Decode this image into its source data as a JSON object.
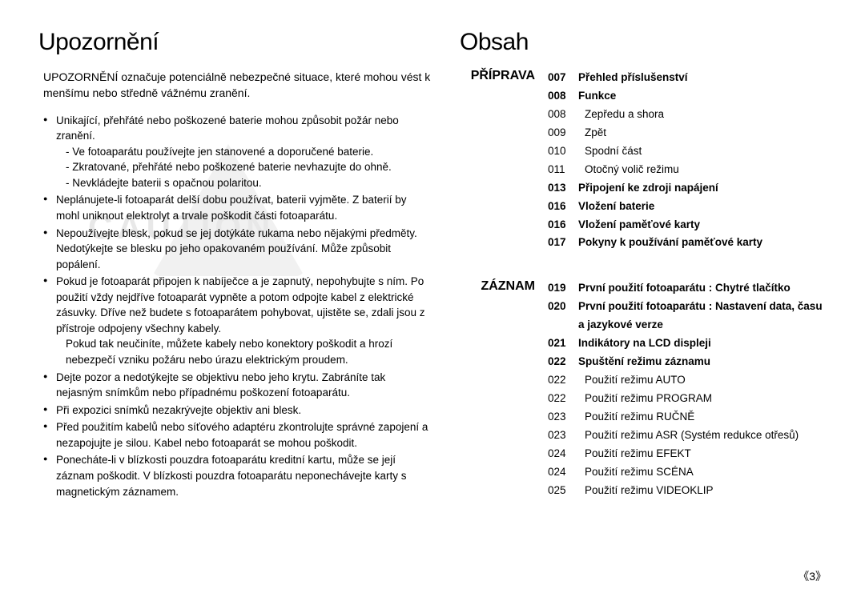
{
  "left": {
    "heading": "Upozornění",
    "intro": "UPOZORNĚNÍ označuje potenciálně nebezpečné situace, které mohou vést k menšímu nebo středně vážnému zranění.",
    "watermark": "CAUTION",
    "bullets": [
      {
        "text": "Unikající, přehřáté nebo poškozené baterie mohou způsobit požár nebo zranění.",
        "subs": [
          "- Ve fotoaparátu používejte jen stanovené a doporučené baterie.",
          "- Zkratované, přehřáté nebo poškozené baterie nevhazujte do ohně.",
          "- Nevkládejte baterii s opačnou polaritou."
        ]
      },
      {
        "text": "Neplánujete-li fotoaparát delší dobu používat, baterii vyjměte. Z baterií by mohl uniknout elektrolyt a trvale poškodit části fotoaparátu.",
        "subs": []
      },
      {
        "text": "Nepoužívejte blesk, pokud se jej dotýkáte rukama nebo nějakými předměty. Nedotýkejte se blesku po jeho opakovaném používání. Může způsobit popálení.",
        "subs": []
      },
      {
        "text": "Pokud je fotoaparát připojen k nabíječce a je zapnutý, nepohybujte s ním. Po použití vždy nejdříve fotoaparát vypněte a potom odpojte kabel z elektrické zásuvky. Dříve než budete s  fotoaparátem pohybovat, ujistěte se, zdali jsou z přístroje odpojeny všechny kabely.",
        "subs": [
          "Pokud tak neučiníte, můžete kabely nebo konektory poškodit a hrozí nebezpečí vzniku požáru nebo úrazu elektrickým proudem."
        ]
      },
      {
        "text": "Dejte pozor a nedotýkejte se objektivu nebo jeho krytu. Zabráníte tak nejasným snímkům nebo případnému poškození fotoaparátu.",
        "subs": []
      },
      {
        "text": "Při expozici snímků nezakrývejte objektiv ani blesk.",
        "subs": []
      },
      {
        "text": "Před použitím kabelů nebo síťového adaptéru zkontrolujte správné zapojení a nezapojujte je silou. Kabel nebo fotoaparát se mohou poškodit.",
        "subs": []
      },
      {
        "text": "Ponecháte-li v blízkosti pouzdra fotoaparátu kreditní kartu, může se její záznam poškodit. V blízkosti pouzdra fotoaparátu neponechávejte karty s magnetickým záznamem.",
        "subs": []
      }
    ]
  },
  "right": {
    "heading": "Obsah",
    "sections": [
      {
        "label": "PŘÍPRAVA",
        "rows": [
          {
            "pg": "007",
            "txt": "Přehled příslušenství",
            "bold": true
          },
          {
            "pg": "008",
            "txt": "Funkce",
            "bold": true
          },
          {
            "pg": "008",
            "txt": "Zepředu a shora",
            "bold": false,
            "indent": true
          },
          {
            "pg": "009",
            "txt": "Zpět",
            "bold": false,
            "indent": true
          },
          {
            "pg": "010",
            "txt": "Spodní část",
            "bold": false,
            "indent": true
          },
          {
            "pg": "011",
            "txt": "Otočný volič režimu",
            "bold": false,
            "indent": true
          },
          {
            "pg": "013",
            "txt": "Připojení ke zdroji napájení",
            "bold": true
          },
          {
            "pg": "016",
            "txt": "Vložení baterie",
            "bold": true
          },
          {
            "pg": "016",
            "txt": "Vložení paměťové karty",
            "bold": true
          },
          {
            "pg": "017",
            "txt": "Pokyny k používání paměťové karty",
            "bold": true
          }
        ]
      },
      {
        "label": "ZÁZNAM",
        "rows": [
          {
            "pg": "019",
            "txt": "První použití fotoaparátu : Chytré tlačítko",
            "bold": true
          },
          {
            "pg": "020",
            "txt": "První použití fotoaparátu : Nastavení data, času a jazykové verze",
            "bold": true
          },
          {
            "pg": "021",
            "txt": "Indikátory na LCD displeji",
            "bold": true
          },
          {
            "pg": "022",
            "txt": "Spuštění režimu záznamu",
            "bold": true
          },
          {
            "pg": "022",
            "txt": "Použití režimu AUTO",
            "bold": false,
            "indent": true
          },
          {
            "pg": "022",
            "txt": "Použití režimu PROGRAM",
            "bold": false,
            "indent": true
          },
          {
            "pg": "023",
            "txt": "Použití režimu RUČNĚ",
            "bold": false,
            "indent": true
          },
          {
            "pg": "023",
            "txt": "Použití režimu ASR (Systém redukce otřesů)",
            "bold": false,
            "indent": true
          },
          {
            "pg": "024",
            "txt": "Použití režimu EFEKT",
            "bold": false,
            "indent": true
          },
          {
            "pg": "024",
            "txt": "Použití režimu SCÉNA",
            "bold": false,
            "indent": true
          },
          {
            "pg": "025",
            "txt": "Použití režimu VIDEOKLIP",
            "bold": false,
            "indent": true
          }
        ]
      }
    ]
  },
  "footer": "《3》"
}
